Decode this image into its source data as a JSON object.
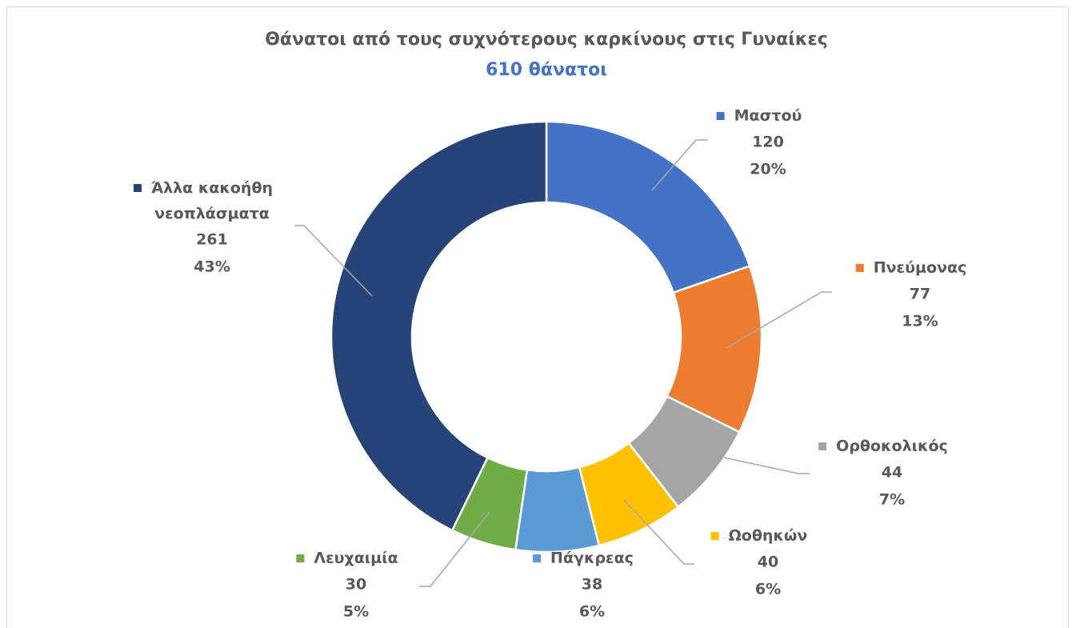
{
  "chart_data": {
    "type": "donut",
    "title": "Θάνατοι από τους συχνότερους καρκίνους στις Γυναίκες",
    "subtitle": "610 θάνατοι",
    "categories": [
      "Μαστού",
      "Πνεύμονας",
      "Ορθοκολικός",
      "Ωοθηκών",
      "Πάγκρεας",
      "Λευχαιμία",
      "Άλλα κακοήθη νεοπλάσματα"
    ],
    "values": [
      120,
      77,
      44,
      40,
      38,
      30,
      261
    ],
    "value_labels": [
      "20%",
      "13%",
      "7%",
      "6%",
      "6%",
      "5%",
      "43%"
    ],
    "colors": [
      "#4472c4",
      "#ed7d31",
      "#a5a5a5",
      "#ffc000",
      "#5b9bd5",
      "#70ad47",
      "#264478"
    ]
  }
}
